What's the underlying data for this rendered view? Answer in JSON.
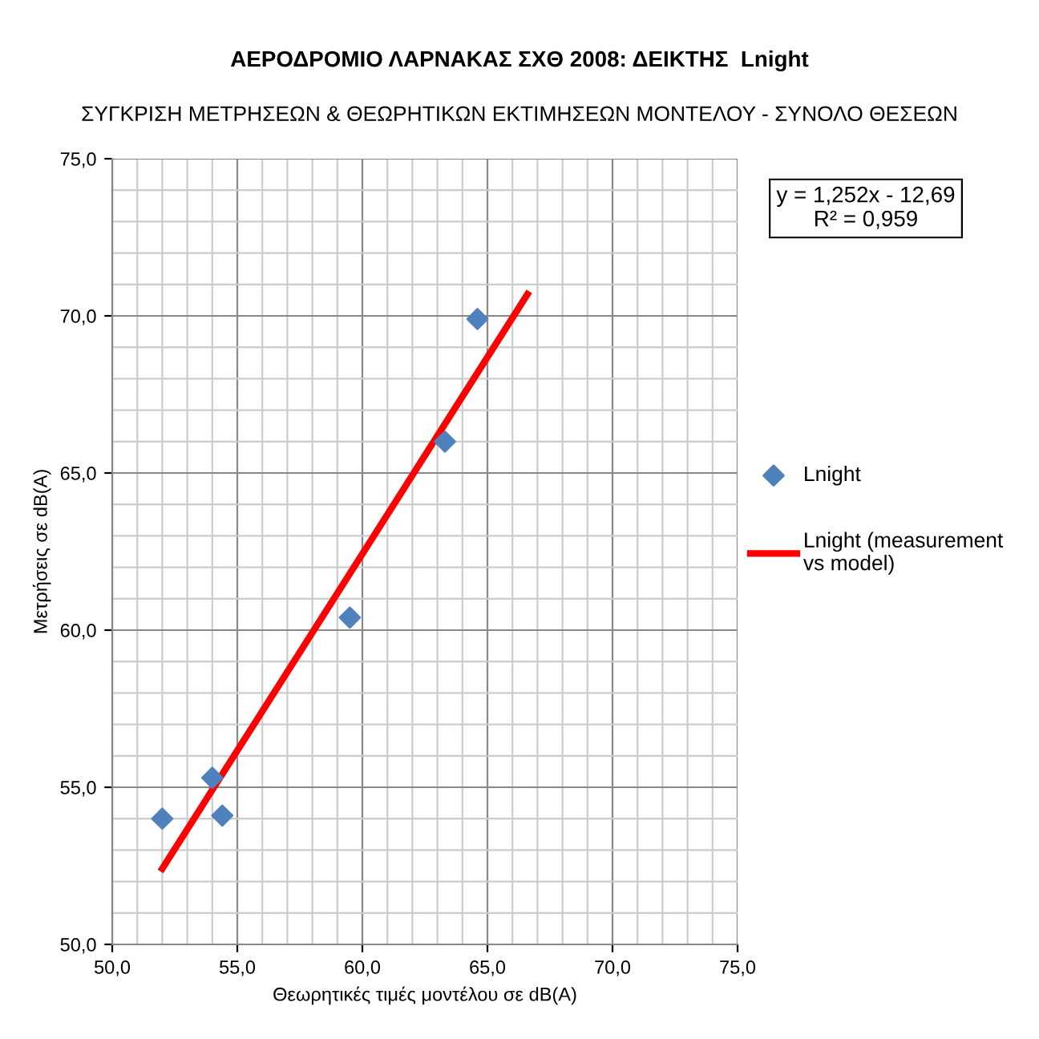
{
  "chart_data": {
    "type": "scatter",
    "title": "ΑΕΡΟΔΡΟΜΙΟ ΛΑΡΝΑΚΑΣ ΣΧΘ 2008: ΔΕΙΚΤΗΣ  Lnight",
    "subtitle": "ΣΥΓΚΡΙΣΗ ΜΕΤΡΗΣΕΩΝ & ΘΕΩΡΗΤΙΚΩΝ ΕΚΤΙΜΗΣΕΩΝ ΜΟΝΤΕΛΟΥ - ΣΥΝΟΛΟ ΘΕΣΕΩΝ",
    "xlabel": "Θεωρητικές τιμές μοντέλου σε dB(A)",
    "ylabel": "Μετρήσεις σε dB(A)",
    "series": [
      {
        "name": "Lnight",
        "marker": "diamond",
        "color": "#4f81bd",
        "x": [
          52.0,
          54.0,
          54.4,
          59.5,
          63.3,
          64.6
        ],
        "values": [
          54.0,
          55.3,
          54.1,
          60.4,
          66.0,
          69.9
        ]
      },
      {
        "name": "Lnight (measurement vs model)",
        "type": "line",
        "marker": "none",
        "color": "#ff0000",
        "x": [
          52.0,
          66.6
        ],
        "values": [
          52.41,
          70.69
        ]
      }
    ],
    "annotations": [
      "y = 1,252x - 12,69\nR² = 0,959"
    ],
    "xlim": [
      50,
      75
    ],
    "ylim": [
      50,
      75
    ],
    "xticks": [
      {
        "value": 50,
        "label": "50,0"
      },
      {
        "value": 55,
        "label": "55,0"
      },
      {
        "value": 60,
        "label": "60,0"
      },
      {
        "value": 65,
        "label": "65,0"
      },
      {
        "value": 70,
        "label": "70,0"
      },
      {
        "value": 75,
        "label": "75,0"
      }
    ],
    "yticks": [
      {
        "value": 50,
        "label": "50,0"
      },
      {
        "value": 55,
        "label": "55,0"
      },
      {
        "value": 60,
        "label": "60,0"
      },
      {
        "value": 65,
        "label": "65,0"
      },
      {
        "value": 70,
        "label": "70,0"
      },
      {
        "value": 75,
        "label": "75,0"
      }
    ],
    "grid": true,
    "legend": "right"
  }
}
